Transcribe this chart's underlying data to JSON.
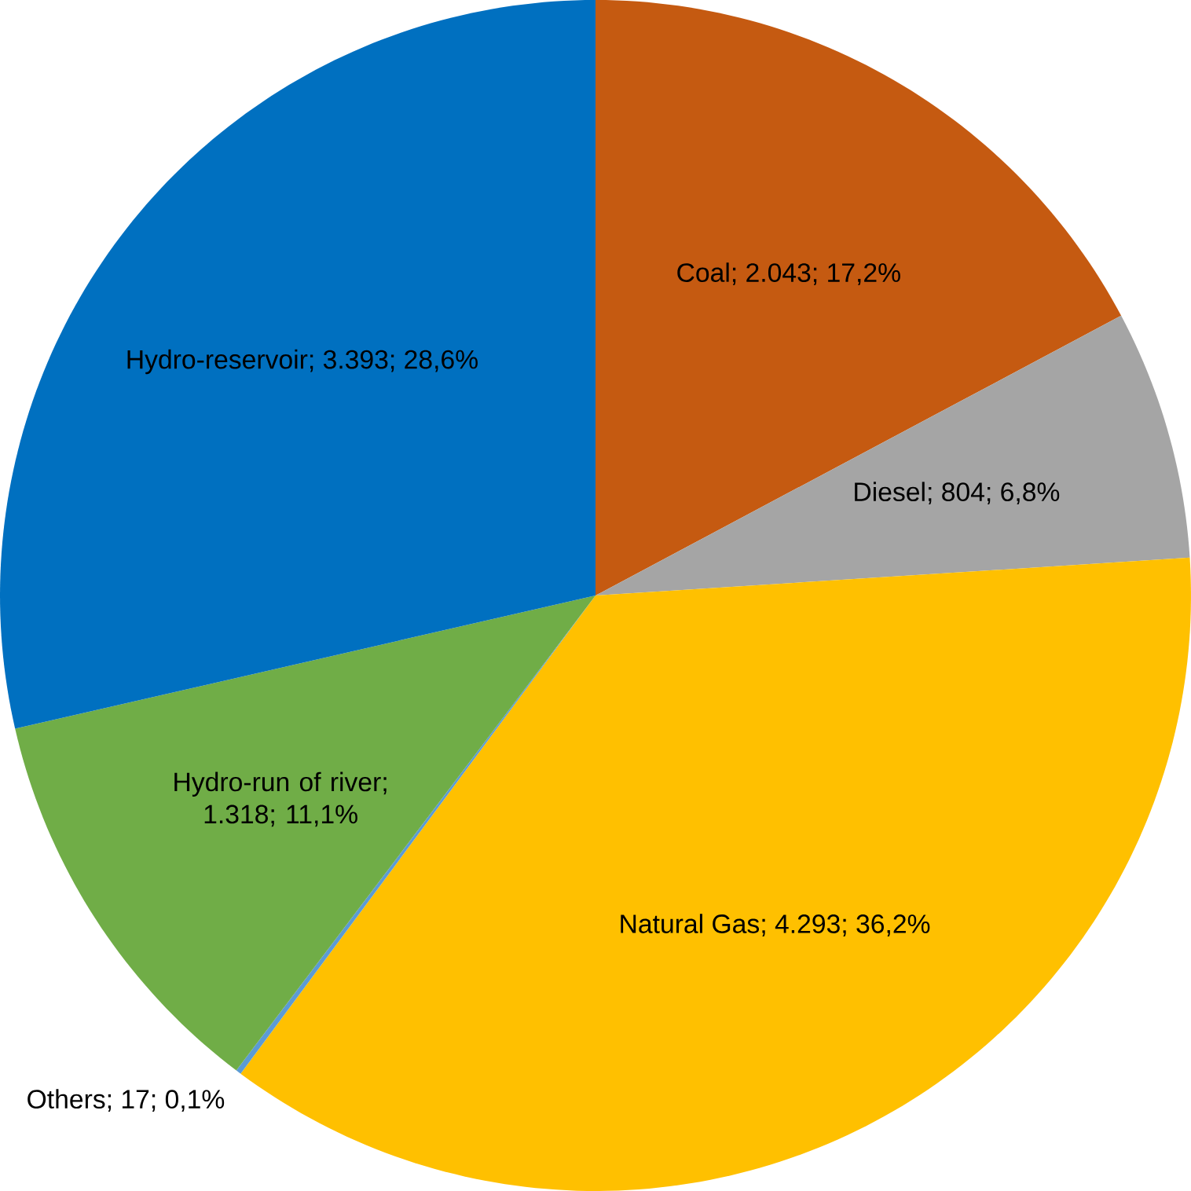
{
  "chart_data": {
    "type": "pie",
    "categories": [
      "Coal",
      "Diesel",
      "Natural Gas",
      "Others",
      "Hydro-run of river",
      "Hydro-reservoir"
    ],
    "values": [
      2043,
      804,
      4293,
      17,
      1318,
      3393
    ],
    "value_labels": [
      "; 2.043; 17,2%",
      "; 804; 6,8%",
      "; 4.293; 36,2%",
      "; 17; 0,1%",
      "; 1.318; 11,1%",
      "; 3.393; 28,6%"
    ],
    "colors": [
      "#c55a11",
      "#a5a5a5",
      "#ffc000",
      "#5b9bd5",
      "#70ad47",
      "#0070c0"
    ]
  }
}
